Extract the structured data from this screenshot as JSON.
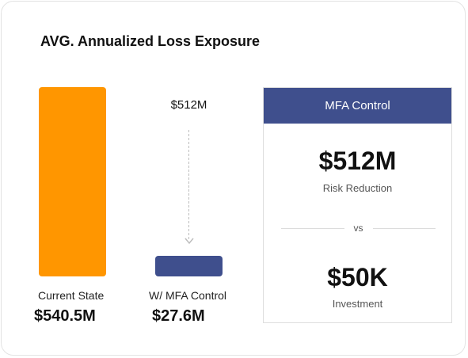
{
  "title": "AVG. Annualized Loss Exposure",
  "chart_data": {
    "type": "bar",
    "title": "AVG. Annualized Loss Exposure",
    "categories": [
      "Current State",
      "W/ MFA Control"
    ],
    "values": [
      540.5,
      27.6
    ],
    "value_labels": [
      "$540.5M",
      "$27.6M"
    ],
    "unit": "$M",
    "reduction_label": "$512M",
    "colors": [
      "#FF9600",
      "#3F4F8D"
    ]
  },
  "bars": [
    {
      "caption": "Current State",
      "value": "$540.5M"
    },
    {
      "caption": "W/ MFA Control",
      "value": "$27.6M"
    }
  ],
  "delta_label": "$512M",
  "panel": {
    "header": "MFA Control",
    "reduction_value": "$512M",
    "reduction_label": "Risk Reduction",
    "vs": "vs",
    "investment_value": "$50K",
    "investment_label": "Investment"
  },
  "colors": {
    "accent_orange": "#FF9600",
    "accent_navy": "#3F4F8D"
  }
}
